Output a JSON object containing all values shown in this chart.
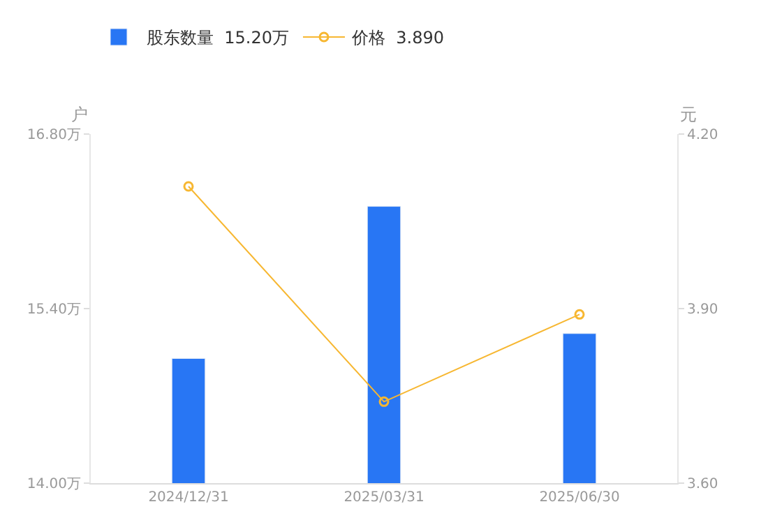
{
  "chart_data": {
    "type": "bar",
    "categories": [
      "2024/12/31",
      "2025/03/31",
      "2025/06/30"
    ],
    "ylabel": "户",
    "y2label": "元",
    "series": [
      {
        "name": "股东数量  15.20万",
        "color": "#2876f4",
        "values": [
          15.0,
          16.22,
          15.2
        ]
      },
      {
        "name": "价格  3.890",
        "type": "line",
        "axis": "y2",
        "color": "#f7b731",
        "marker": "circle",
        "values": [
          4.11,
          3.74,
          3.89
        ]
      }
    ],
    "ylim": [
      14.0,
      16.8
    ],
    "yticks": [
      {
        "value": 14.0,
        "label": "14.00万"
      },
      {
        "value": 15.4,
        "label": "15.40万"
      },
      {
        "value": 16.8,
        "label": "16.80万"
      }
    ],
    "y2lim": [
      3.6,
      4.2
    ],
    "y2ticks": [
      {
        "value": 3.6,
        "label": "3.60"
      },
      {
        "value": 3.9,
        "label": "3.90"
      },
      {
        "value": 4.2,
        "label": "4.20"
      }
    ],
    "legend": "top left"
  }
}
